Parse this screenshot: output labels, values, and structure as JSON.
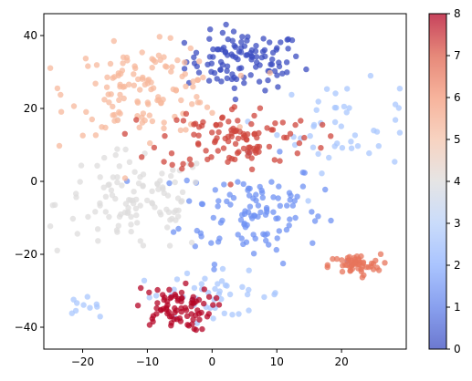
{
  "chart_data": {
    "type": "scatter",
    "title": "",
    "xlabel": "",
    "ylabel": "",
    "xlim": [
      -26,
      30
    ],
    "ylim": [
      -46,
      46
    ],
    "x_ticks": [
      -20,
      -10,
      0,
      10,
      20
    ],
    "y_ticks": [
      -40,
      -20,
      0,
      20,
      40
    ],
    "grid": false,
    "legend": "none",
    "colormap": "coolwarm",
    "colorbar": {
      "min": 0,
      "max": 8,
      "ticks": [
        0,
        1,
        2,
        3,
        4,
        5,
        6,
        7,
        8
      ],
      "placement": "right"
    },
    "marker_alpha": 0.75,
    "palette": [
      "#3b4cc0",
      "#6f92f3",
      "#aac7fd",
      "#dddcdc",
      "#f7b89c",
      "#f4987a",
      "#e7745b",
      "#cf453c",
      "#b40426"
    ],
    "clusters": [
      {
        "value": 0,
        "center": [
          5,
          33
        ],
        "spread": [
          4.5,
          4
        ],
        "count": 110
      },
      {
        "value": 1,
        "center": [
          6,
          -8
        ],
        "spread": [
          5.5,
          7
        ],
        "count": 110
      },
      {
        "value": 2,
        "center": [
          20,
          15
        ],
        "spread": [
          5,
          6
        ],
        "count": 45
      },
      {
        "value": 2,
        "center": [
          0,
          -31
        ],
        "spread": [
          6,
          3
        ],
        "count": 45
      },
      {
        "value": 2,
        "center": [
          -20,
          -34
        ],
        "spread": [
          1.2,
          1.2
        ],
        "count": 10
      },
      {
        "value": 3,
        "center": [
          -12,
          -6
        ],
        "spread": [
          6,
          7
        ],
        "count": 110
      },
      {
        "value": 4,
        "center": [
          -10,
          25
        ],
        "spread": [
          6,
          6
        ],
        "count": 130
      },
      {
        "value": 6,
        "center": [
          22,
          -23
        ],
        "spread": [
          2,
          1.5
        ],
        "count": 55
      },
      {
        "value": 7,
        "center": [
          4,
          12
        ],
        "spread": [
          6,
          4.5
        ],
        "count": 110
      },
      {
        "value": 8,
        "center": [
          -6,
          -35
        ],
        "spread": [
          3,
          3
        ],
        "count": 80
      }
    ]
  }
}
